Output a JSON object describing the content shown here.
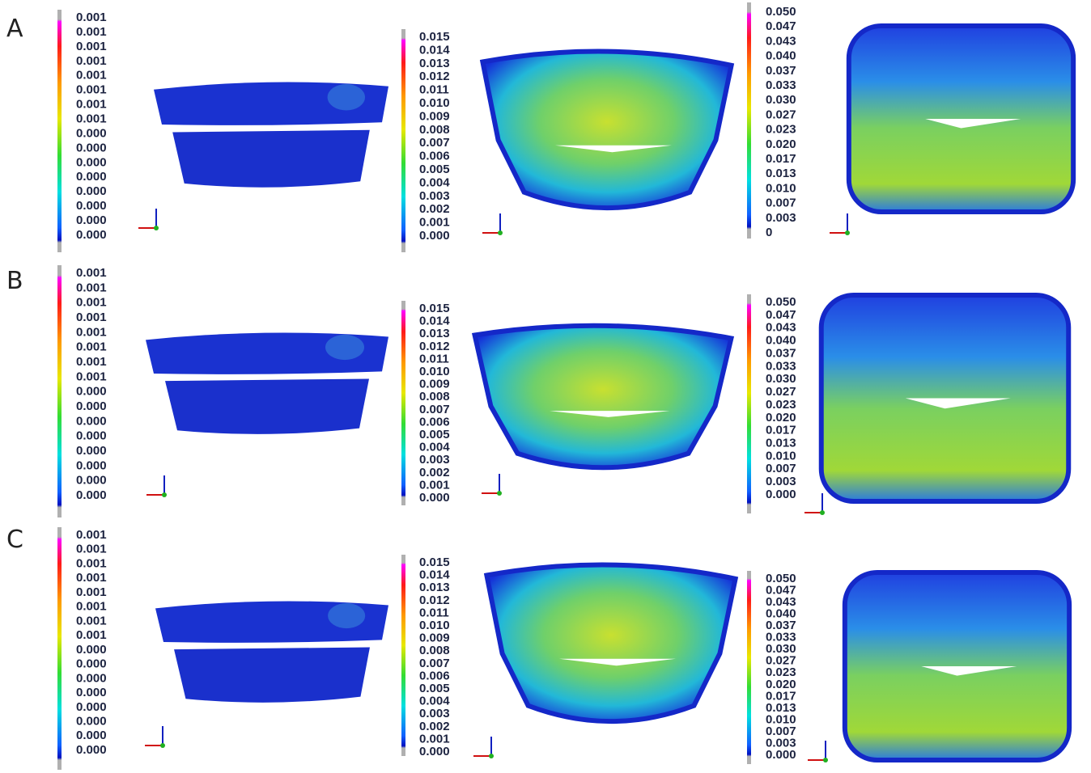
{
  "rows": [
    {
      "label": "A",
      "panels": [
        {
          "ticks": [
            "0.001",
            "0.001",
            "0.001",
            "0.001",
            "0.001",
            "0.001",
            "0.001",
            "0.001",
            "0.000",
            "0.000",
            "0.000",
            "0.000",
            "0.000",
            "0.000",
            "0.000",
            "0.000"
          ]
        },
        {
          "ticks": [
            "0.015",
            "0.014",
            "0.013",
            "0.012",
            "0.011",
            "0.010",
            "0.009",
            "0.008",
            "0.007",
            "0.006",
            "0.005",
            "0.004",
            "0.003",
            "0.002",
            "0.001",
            "0.000"
          ]
        },
        {
          "ticks": [
            "0.050",
            "0.047",
            "0.043",
            "0.040",
            "0.037",
            "0.033",
            "0.030",
            "0.027",
            "0.023",
            "0.020",
            "0.017",
            "0.013",
            "0.010",
            "0.007",
            "0.003",
            "0"
          ]
        }
      ]
    },
    {
      "label": "B",
      "panels": [
        {
          "ticks": [
            "0.001",
            "0.001",
            "0.001",
            "0.001",
            "0.001",
            "0.001",
            "0.001",
            "0.001",
            "0.000",
            "0.000",
            "0.000",
            "0.000",
            "0.000",
            "0.000",
            "0.000",
            "0.000"
          ]
        },
        {
          "ticks": [
            "0.015",
            "0.014",
            "0.013",
            "0.012",
            "0.011",
            "0.010",
            "0.009",
            "0.008",
            "0.007",
            "0.006",
            "0.005",
            "0.004",
            "0.003",
            "0.002",
            "0.001",
            "0.000"
          ]
        },
        {
          "ticks": [
            "0.050",
            "0.047",
            "0.043",
            "0.040",
            "0.037",
            "0.033",
            "0.030",
            "0.027",
            "0.023",
            "0.020",
            "0.017",
            "0.013",
            "0.010",
            "0.007",
            "0.003",
            "0.000"
          ]
        }
      ]
    },
    {
      "label": "C",
      "panels": [
        {
          "ticks": [
            "0.001",
            "0.001",
            "0.001",
            "0.001",
            "0.001",
            "0.001",
            "0.001",
            "0.001",
            "0.000",
            "0.000",
            "0.000",
            "0.000",
            "0.000",
            "0.000",
            "0.000",
            "0.000"
          ]
        },
        {
          "ticks": [
            "0.015",
            "0.014",
            "0.013",
            "0.012",
            "0.011",
            "0.010",
            "0.009",
            "0.008",
            "0.007",
            "0.006",
            "0.005",
            "0.004",
            "0.003",
            "0.002",
            "0.001",
            "0.000"
          ]
        },
        {
          "ticks": [
            "0.050",
            "0.047",
            "0.043",
            "0.040",
            "0.037",
            "0.033",
            "0.030",
            "0.027",
            "0.023",
            "0.020",
            "0.017",
            "0.013",
            "0.010",
            "0.007",
            "0.003",
            "0.000"
          ]
        }
      ]
    }
  ]
}
